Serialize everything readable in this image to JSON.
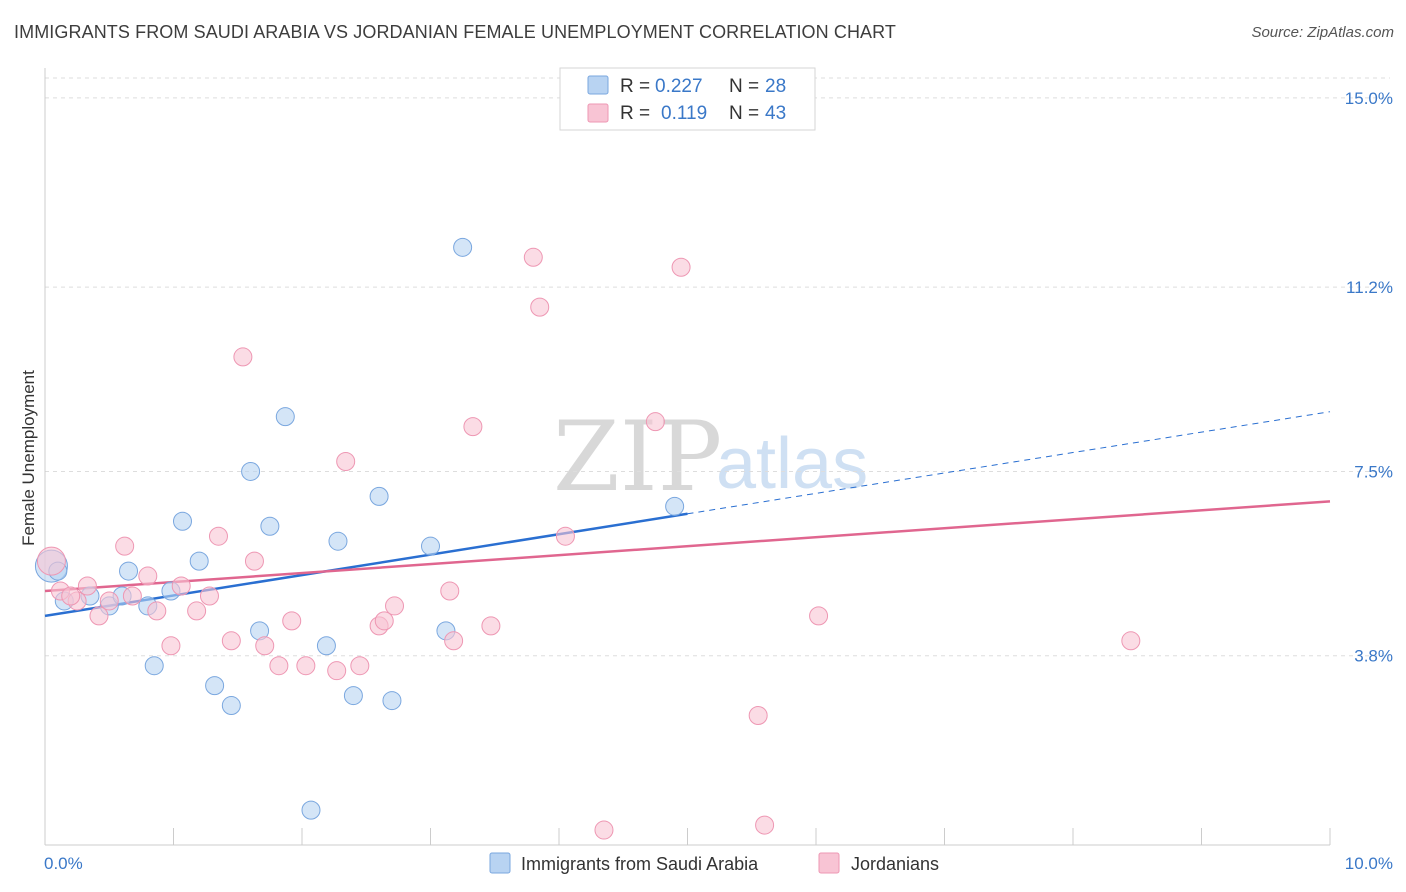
{
  "title": "IMMIGRANTS FROM SAUDI ARABIA VS JORDANIAN FEMALE UNEMPLOYMENT CORRELATION CHART",
  "source": "Source: ZipAtlas.com",
  "watermark": {
    "zip": "ZIP",
    "atlas": "atlas"
  },
  "colors": {
    "blue_fill": "#b8d3f2",
    "blue_stroke": "#7aa7df",
    "blue_line": "#2a6fd1",
    "pink_fill": "#f8c4d4",
    "pink_stroke": "#ee97b3",
    "pink_line": "#e0668f",
    "tick_text": "#3a78c8",
    "grid": "#dddddd"
  },
  "legend": {
    "rows": [
      {
        "r_label": "R = ",
        "r_value": "0.227",
        "n_label": "N = ",
        "n_value": "28",
        "series": "blue"
      },
      {
        "r_label": "R = ",
        "r_value": "0.119",
        "n_label": "N = ",
        "n_value": "43",
        "series": "pink"
      }
    ]
  },
  "chart_data": {
    "type": "scatter",
    "title": "IMMIGRANTS FROM SAUDI ARABIA VS JORDANIAN FEMALE UNEMPLOYMENT CORRELATION CHART",
    "xlabel": "",
    "ylabel": "Female Unemployment",
    "xlim": [
      0,
      10
    ],
    "ylim": [
      0,
      15.4
    ],
    "x_tick_labels": [
      "0.0%",
      "10.0%"
    ],
    "y_ticks": [
      3.8,
      7.5,
      11.2,
      15.0
    ],
    "y_tick_labels": [
      "3.8%",
      "7.5%",
      "11.2%",
      "15.0%"
    ],
    "grid": true,
    "legend_position": "top-center",
    "series": [
      {
        "name": "Immigrants from Saudi Arabia",
        "color": "blue",
        "trend": {
          "x0": 0,
          "y0": 4.6,
          "x_solid_end": 5.0,
          "x1": 10,
          "y1": 8.7
        },
        "points": [
          [
            0.05,
            5.6,
            16
          ],
          [
            0.15,
            4.9,
            9
          ],
          [
            0.35,
            5.0,
            9
          ],
          [
            0.5,
            4.8,
            9
          ],
          [
            0.6,
            5.0,
            9
          ],
          [
            0.65,
            5.5,
            9
          ],
          [
            0.8,
            4.8,
            9
          ],
          [
            0.85,
            3.6,
            9
          ],
          [
            0.98,
            5.1,
            9
          ],
          [
            1.07,
            6.5,
            9
          ],
          [
            1.2,
            5.7,
            9
          ],
          [
            1.32,
            3.2,
            9
          ],
          [
            1.45,
            2.8,
            9
          ],
          [
            1.6,
            7.5,
            9
          ],
          [
            1.67,
            4.3,
            9
          ],
          [
            1.75,
            6.4,
            9
          ],
          [
            1.87,
            8.6,
            9
          ],
          [
            2.07,
            0.7,
            9
          ],
          [
            2.19,
            4.0,
            9
          ],
          [
            2.28,
            6.1,
            9
          ],
          [
            2.4,
            3.0,
            9
          ],
          [
            2.6,
            7.0,
            9
          ],
          [
            2.7,
            2.9,
            9
          ],
          [
            3.0,
            6.0,
            9
          ],
          [
            3.12,
            4.3,
            9
          ],
          [
            3.25,
            12.0,
            9
          ],
          [
            4.9,
            6.8,
            9
          ],
          [
            0.1,
            5.5,
            9
          ]
        ]
      },
      {
        "name": "Jordanians",
        "color": "pink",
        "trend": {
          "x0": 0,
          "y0": 5.1,
          "x1": 10,
          "y1": 6.9
        },
        "points": [
          [
            0.05,
            5.7,
            14
          ],
          [
            0.12,
            5.1,
            9
          ],
          [
            0.25,
            4.9,
            9
          ],
          [
            0.33,
            5.2,
            9
          ],
          [
            0.42,
            4.6,
            9
          ],
          [
            0.5,
            4.9,
            9
          ],
          [
            0.62,
            6.0,
            9
          ],
          [
            0.68,
            5.0,
            9
          ],
          [
            0.8,
            5.4,
            9
          ],
          [
            0.87,
            4.7,
            9
          ],
          [
            0.98,
            4.0,
            9
          ],
          [
            1.06,
            5.2,
            9
          ],
          [
            1.18,
            4.7,
            9
          ],
          [
            1.28,
            5.0,
            9
          ],
          [
            1.35,
            6.2,
            9
          ],
          [
            1.45,
            4.1,
            9
          ],
          [
            1.54,
            9.8,
            9
          ],
          [
            1.63,
            5.7,
            9
          ],
          [
            1.71,
            4.0,
            9
          ],
          [
            1.82,
            3.6,
            9
          ],
          [
            1.92,
            4.5,
            9
          ],
          [
            2.03,
            3.6,
            9
          ],
          [
            2.27,
            3.5,
            9
          ],
          [
            2.34,
            7.7,
            9
          ],
          [
            2.45,
            3.6,
            9
          ],
          [
            2.6,
            4.4,
            9
          ],
          [
            2.64,
            4.5,
            9
          ],
          [
            2.72,
            4.8,
            9
          ],
          [
            3.15,
            5.1,
            9
          ],
          [
            3.18,
            4.1,
            9
          ],
          [
            3.33,
            8.4,
            9
          ],
          [
            3.47,
            4.4,
            9
          ],
          [
            3.8,
            11.8,
            9
          ],
          [
            3.85,
            10.8,
            9
          ],
          [
            4.05,
            6.2,
            9
          ],
          [
            4.35,
            0.3,
            9
          ],
          [
            4.75,
            8.5,
            9
          ],
          [
            4.95,
            11.6,
            9
          ],
          [
            5.55,
            2.6,
            9
          ],
          [
            5.6,
            0.4,
            9
          ],
          [
            6.02,
            4.6,
            9
          ],
          [
            8.45,
            4.1,
            9
          ],
          [
            0.2,
            5.0,
            9
          ]
        ]
      }
    ]
  },
  "bottom_legend": [
    {
      "label": "Immigrants from Saudi Arabia",
      "series": "blue"
    },
    {
      "label": "Jordanians",
      "series": "pink"
    }
  ]
}
